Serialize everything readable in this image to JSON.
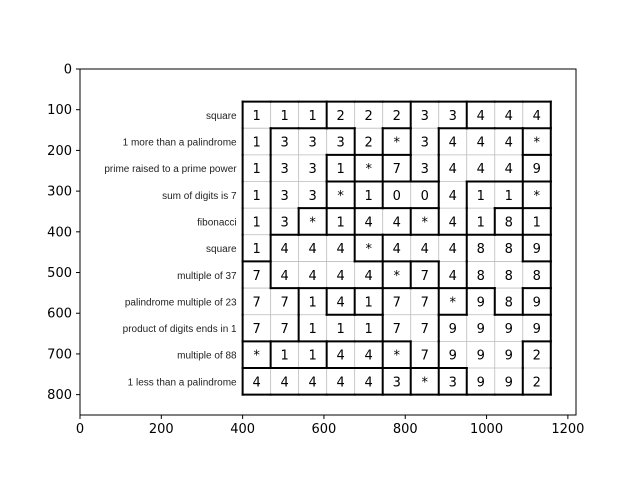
{
  "chart_data": {
    "type": "heatmap",
    "xlim": [
      0,
      1220
    ],
    "ylim": [
      850,
      0
    ],
    "xticks": [
      "0",
      "200",
      "400",
      "600",
      "800",
      "1000",
      "1200"
    ],
    "yticks": [
      "0",
      "100",
      "200",
      "300",
      "400",
      "500",
      "600",
      "700",
      "800"
    ],
    "row_clues": [
      "square",
      "1 more than a palindrome",
      "prime raised to a prime power",
      "sum of digits is 7",
      "fibonacci",
      "square",
      "multiple of 37",
      "palindrome multiple of 23",
      "product of digits ends in 1",
      "multiple of 88",
      "1 less than a palindrome"
    ],
    "grid": [
      [
        "1",
        "1",
        "1",
        "2",
        "2",
        "2",
        "3",
        "3",
        "4",
        "4",
        "4"
      ],
      [
        "1",
        "3",
        "3",
        "3",
        "2",
        "*",
        "3",
        "4",
        "4",
        "4",
        "*"
      ],
      [
        "1",
        "3",
        "3",
        "1",
        "*",
        "7",
        "3",
        "4",
        "4",
        "4",
        "9"
      ],
      [
        "1",
        "3",
        "3",
        "*",
        "1",
        "0",
        "0",
        "4",
        "1",
        "1",
        "*"
      ],
      [
        "1",
        "3",
        "*",
        "1",
        "4",
        "4",
        "*",
        "4",
        "1",
        "8",
        "1"
      ],
      [
        "1",
        "4",
        "4",
        "4",
        "*",
        "4",
        "4",
        "4",
        "8",
        "8",
        "9"
      ],
      [
        "7",
        "4",
        "4",
        "4",
        "4",
        "*",
        "7",
        "4",
        "8",
        "8",
        "8"
      ],
      [
        "7",
        "7",
        "1",
        "4",
        "1",
        "7",
        "7",
        "*",
        "9",
        "8",
        "9"
      ],
      [
        "7",
        "7",
        "1",
        "1",
        "1",
        "7",
        "7",
        "9",
        "9",
        "9",
        "9"
      ],
      [
        "*",
        "1",
        "1",
        "4",
        "4",
        "*",
        "7",
        "9",
        "9",
        "9",
        "2"
      ],
      [
        "4",
        "4",
        "4",
        "4",
        "4",
        "3",
        "*",
        "3",
        "9",
        "9",
        "2"
      ]
    ],
    "regions": [
      [
        "A",
        "A",
        "A",
        "B",
        "B",
        "B",
        "C",
        "C",
        "D",
        "D",
        "D"
      ],
      [
        "A",
        "E",
        "E",
        "E",
        "B",
        "F",
        "C",
        "G",
        "G",
        "G",
        "H"
      ],
      [
        "A",
        "E",
        "E",
        "I",
        "J",
        "K",
        "C",
        "G",
        "G",
        "G",
        "L"
      ],
      [
        "A",
        "E",
        "E",
        "M",
        "N",
        "O",
        "O",
        "G",
        "P",
        "P",
        "Q"
      ],
      [
        "A",
        "E",
        "R",
        "S",
        "T",
        "T",
        "U",
        "G",
        "P",
        "V",
        "W"
      ],
      [
        "A",
        "X",
        "X",
        "X",
        "Y",
        "X",
        "X",
        "X",
        "Z",
        "Z",
        "AA"
      ],
      [
        "AB",
        "X",
        "X",
        "X",
        "X",
        "AC",
        "AD",
        "X",
        "Z",
        "Z",
        "Z"
      ],
      [
        "AB",
        "AB",
        "AE",
        "AF",
        "AG",
        "AH",
        "AH",
        "AI",
        "AJ",
        "Z",
        "AK"
      ],
      [
        "AB",
        "AB",
        "AE",
        "AE",
        "AE",
        "AH",
        "AH",
        "AJ",
        "AJ",
        "AJ",
        "AJ"
      ],
      [
        "AL",
        "AM",
        "AM",
        "AN",
        "AN",
        "AO",
        "AH",
        "AJ",
        "AJ",
        "AJ",
        "AP"
      ],
      [
        "AQ",
        "AQ",
        "AQ",
        "AQ",
        "AQ",
        "AR",
        "AS",
        "AT",
        "AJ",
        "AJ",
        "AP"
      ]
    ]
  }
}
